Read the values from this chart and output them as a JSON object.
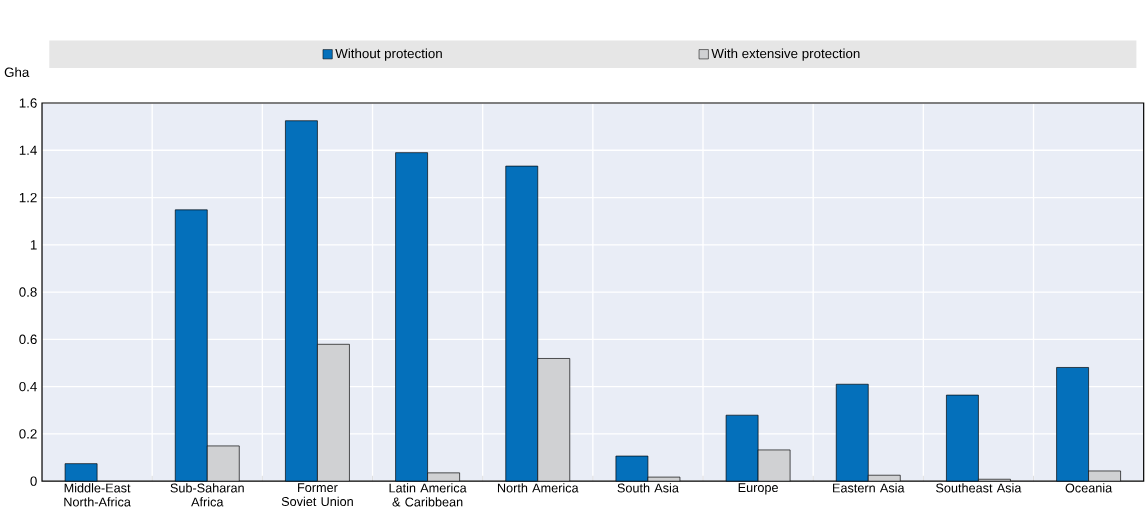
{
  "chart_data": {
    "type": "bar",
    "ylabel": "Gha",
    "categories": [
      "Middle-East North-Africa",
      "Sub-Saharan Africa",
      "Former Soviet Union",
      "Latin America & Caribbean",
      "North America",
      "South Asia",
      "Europe",
      "Eastern Asia",
      "Southeast Asia",
      "Oceania"
    ],
    "series": [
      {
        "name": "Without protection",
        "color": "#0470bb",
        "values": [
          0.074,
          1.148,
          1.525,
          1.39,
          1.333,
          0.106,
          0.279,
          0.41,
          0.364,
          0.481
        ]
      },
      {
        "name": "With extensive protection",
        "color": "#d0d1d3",
        "values": [
          null,
          0.149,
          0.579,
          0.035,
          0.519,
          0.017,
          0.132,
          0.025,
          0.008,
          0.043
        ]
      }
    ],
    "ylim": [
      0,
      1.6
    ],
    "yticks": [
      0,
      0.2,
      0.4,
      0.6,
      0.8,
      1,
      1.2,
      1.4,
      1.6
    ],
    "grid": true,
    "legend": "top"
  }
}
